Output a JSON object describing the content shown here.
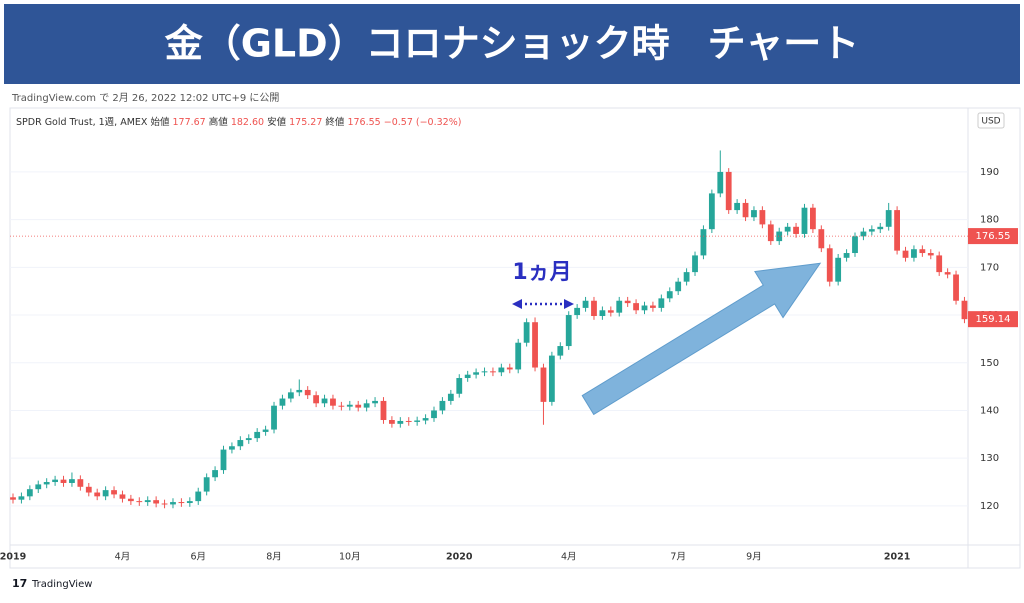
{
  "chart_data": {
    "type": "candlestick",
    "title": "金（GLD）コロナショック時　チャート",
    "subtitle": "TradingView.com で 2月 26, 2022 12:02 UTC+9 に公開",
    "legend": {
      "symbol": "SPDR Gold Trust, 1週, AMEX",
      "items": [
        [
          "始値",
          "177.67"
        ],
        [
          "高値",
          "182.60"
        ],
        [
          "安値",
          "175.27"
        ],
        [
          "終値",
          "176.55"
        ]
      ],
      "change": "−0.57 (−0.32%)"
    },
    "currency": "USD",
    "annotation": "1ヵ月",
    "brand": "TradingView",
    "price_line": 176.55,
    "up_color": "#26a69a",
    "down_color": "#ef5350",
    "ylim": [
      111.8,
      203.4
    ],
    "yticks": [
      120,
      130,
      140,
      150,
      160,
      170,
      180,
      190
    ],
    "grid": true,
    "categories": [
      "2019",
      null,
      null,
      null,
      null,
      null,
      null,
      null,
      null,
      null,
      null,
      null,
      null,
      "4月",
      null,
      null,
      null,
      null,
      null,
      null,
      null,
      null,
      "6月",
      null,
      null,
      null,
      null,
      null,
      null,
      null,
      null,
      "8月",
      null,
      null,
      null,
      null,
      null,
      null,
      null,
      null,
      "10月",
      null,
      null,
      null,
      null,
      null,
      null,
      null,
      null,
      null,
      null,
      null,
      null,
      "2020",
      null,
      null,
      null,
      null,
      null,
      null,
      null,
      null,
      null,
      null,
      null,
      null,
      "4月",
      null,
      null,
      null,
      null,
      null,
      null,
      null,
      null,
      null,
      null,
      null,
      null,
      "7月",
      null,
      null,
      null,
      null,
      null,
      null,
      null,
      null,
      "9月",
      null,
      null,
      null,
      null,
      null,
      null,
      null,
      null,
      null,
      null,
      null,
      null,
      null,
      null,
      null,
      null,
      "2021",
      null,
      null,
      null,
      null,
      null,
      null,
      null,
      null
    ],
    "open": [
      121.8,
      121.3,
      122.0,
      123.5,
      124.5,
      125.0,
      125.5,
      124.8,
      125.6,
      124.0,
      122.8,
      122.0,
      123.3,
      122.4,
      121.5,
      121.0,
      120.8,
      121.2,
      120.5,
      120.3,
      120.8,
      120.6,
      121.0,
      123.0,
      126.0,
      127.5,
      131.8,
      132.5,
      133.8,
      134.2,
      135.5,
      136.0,
      141.0,
      142.5,
      143.8,
      144.3,
      143.2,
      141.5,
      142.5,
      141.0,
      140.8,
      141.2,
      140.6,
      141.5,
      142.0,
      138.0,
      137.2,
      137.8,
      137.6,
      137.9,
      138.4,
      140.0,
      142.0,
      143.5,
      146.8,
      147.5,
      148.0,
      148.2,
      148.0,
      149.0,
      148.6,
      154.2,
      158.5,
      149.0,
      141.8,
      151.5,
      153.5,
      160.0,
      161.5,
      163.0,
      159.8,
      161.0,
      160.5,
      163.0,
      162.5,
      161.0,
      162.0,
      161.5,
      163.5,
      165.0,
      167.0,
      169.0,
      172.5,
      178.0,
      185.5,
      190.0,
      182.0,
      183.5,
      180.5,
      182.0,
      179.0,
      175.5,
      177.5,
      178.5,
      177.0,
      182.5,
      178.0,
      174.0,
      167.0,
      172.0,
      173.0,
      176.5,
      177.5,
      178.0,
      178.5,
      182.0,
      173.5,
      172.0,
      173.8,
      173.0,
      172.5,
      169.0,
      168.5,
      163.0
    ],
    "high": [
      122.6,
      122.8,
      124.3,
      125.3,
      125.8,
      126.3,
      126.3,
      127.0,
      126.4,
      124.8,
      123.6,
      124.1,
      124.1,
      123.2,
      122.3,
      121.8,
      122.0,
      122.0,
      121.3,
      121.6,
      121.6,
      121.8,
      123.8,
      126.8,
      128.3,
      132.6,
      133.3,
      134.6,
      135.0,
      136.3,
      136.8,
      141.8,
      143.3,
      144.6,
      146.5,
      145.1,
      144.0,
      143.3,
      143.3,
      141.8,
      142.0,
      142.0,
      142.3,
      142.8,
      142.8,
      138.8,
      138.6,
      138.6,
      138.7,
      139.2,
      140.8,
      142.8,
      144.3,
      147.6,
      148.3,
      148.8,
      149.0,
      149.0,
      149.8,
      149.8,
      155.0,
      159.3,
      159.5,
      149.8,
      152.3,
      154.3,
      160.8,
      162.3,
      163.8,
      163.8,
      161.8,
      161.8,
      163.8,
      163.8,
      163.3,
      162.8,
      162.8,
      164.3,
      165.8,
      167.8,
      169.8,
      173.3,
      178.8,
      186.3,
      194.5,
      190.8,
      184.3,
      184.3,
      182.8,
      182.8,
      179.8,
      178.3,
      179.3,
      179.3,
      183.3,
      183.3,
      178.8,
      174.8,
      172.8,
      173.8,
      177.3,
      178.3,
      178.8,
      179.3,
      183.5,
      182.8,
      174.3,
      174.6,
      174.6,
      173.8,
      173.3,
      169.8,
      169.3,
      163.8
    ],
    "low": [
      120.5,
      120.5,
      121.2,
      122.7,
      123.7,
      124.2,
      124.0,
      124.0,
      123.2,
      122.0,
      121.2,
      121.2,
      121.6,
      120.7,
      120.2,
      120.0,
      120.0,
      119.7,
      119.5,
      119.5,
      119.8,
      119.8,
      120.2,
      122.2,
      125.2,
      126.7,
      131.0,
      131.7,
      133.0,
      133.4,
      134.7,
      135.2,
      140.2,
      141.7,
      143.0,
      142.4,
      140.7,
      140.7,
      140.2,
      140.0,
      140.0,
      139.8,
      139.8,
      140.7,
      137.2,
      136.4,
      136.4,
      136.8,
      136.8,
      137.1,
      137.6,
      139.2,
      141.2,
      142.7,
      146.0,
      146.7,
      147.2,
      147.2,
      147.2,
      147.8,
      147.8,
      153.4,
      148.2,
      137.0,
      141.0,
      150.7,
      152.7,
      159.2,
      160.7,
      159.0,
      159.0,
      159.7,
      159.7,
      161.7,
      160.2,
      160.2,
      160.7,
      160.7,
      162.7,
      164.2,
      166.2,
      168.2,
      171.7,
      177.2,
      184.7,
      181.2,
      181.2,
      179.7,
      179.7,
      178.2,
      174.7,
      174.7,
      176.7,
      176.2,
      176.2,
      177.2,
      173.2,
      166.0,
      166.2,
      171.2,
      172.2,
      175.7,
      176.7,
      177.2,
      177.7,
      172.7,
      171.2,
      171.2,
      172.2,
      171.7,
      168.2,
      167.7,
      162.2,
      158.3
    ],
    "close": [
      121.3,
      122.0,
      123.5,
      124.5,
      125.0,
      125.5,
      124.8,
      125.6,
      124.0,
      122.8,
      122.0,
      123.3,
      122.4,
      121.5,
      121.0,
      120.8,
      121.2,
      120.5,
      120.3,
      120.8,
      120.6,
      121.0,
      123.0,
      126.0,
      127.5,
      131.8,
      132.5,
      133.8,
      134.2,
      135.5,
      136.0,
      141.0,
      142.5,
      143.8,
      144.3,
      143.2,
      141.5,
      142.5,
      141.0,
      140.8,
      141.2,
      140.6,
      141.5,
      142.0,
      138.0,
      137.2,
      137.8,
      137.6,
      137.9,
      138.4,
      140.0,
      142.0,
      143.5,
      146.8,
      147.5,
      148.0,
      148.2,
      148.0,
      149.0,
      148.6,
      154.2,
      158.5,
      149.0,
      141.8,
      151.5,
      153.5,
      160.0,
      161.5,
      163.0,
      159.8,
      161.0,
      160.5,
      163.0,
      162.5,
      161.0,
      162.0,
      161.5,
      163.5,
      165.0,
      167.0,
      169.0,
      172.5,
      178.0,
      185.5,
      190.0,
      182.0,
      183.5,
      180.5,
      182.0,
      179.0,
      175.5,
      177.5,
      178.5,
      177.0,
      182.5,
      178.0,
      174.0,
      167.0,
      172.0,
      173.0,
      176.5,
      177.5,
      178.0,
      178.5,
      182.0,
      173.5,
      172.0,
      173.8,
      173.0,
      172.5,
      169.0,
      168.5,
      163.0,
      159.14
    ]
  }
}
